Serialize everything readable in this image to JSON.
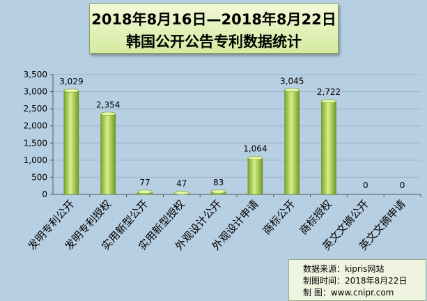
{
  "title": {
    "line1": "2018年8月16日—2018年8月22日",
    "line2": "韩国公开公告专利数据统计"
  },
  "colors": {
    "background": "#b7cfe3",
    "bar_light": "#d8ef8a",
    "bar_dark": "#6f9a23",
    "gridline": "#9fb3c6"
  },
  "chart_data": {
    "type": "bar",
    "categories": [
      "发明专利公开",
      "发明专利授权",
      "实用新型公开",
      "实用新型授权",
      "外观设计公开",
      "外观设计申请",
      "商标公开",
      "商标授权",
      "英文文摘公开",
      "英文文摘申请"
    ],
    "values": [
      3029,
      2354,
      77,
      47,
      83,
      1064,
      3045,
      2722,
      0,
      0
    ],
    "value_labels": [
      "3,029",
      "2,354",
      "77",
      "47",
      "83",
      "1,064",
      "3,045",
      "2,722",
      "0",
      "0"
    ],
    "ylim": [
      0,
      3500
    ],
    "yticks": [
      0,
      500,
      1000,
      1500,
      2000,
      2500,
      3000,
      3500
    ],
    "ytick_labels": [
      "0",
      "500",
      "1,000",
      "1,500",
      "2,000",
      "2,500",
      "3,000",
      "3,500"
    ],
    "grid": true,
    "title": "",
    "xlabel": "",
    "ylabel": ""
  },
  "source": {
    "line1": "数据来源：kipris网站",
    "line2": "制图时间：2018年8月22日",
    "line3": "制    图：www.cnipr.com"
  }
}
